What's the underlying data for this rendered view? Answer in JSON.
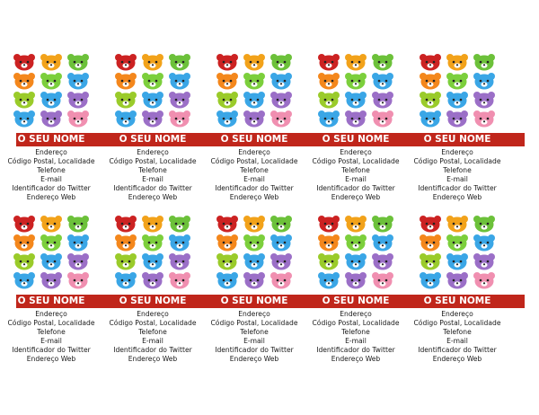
{
  "label": {
    "name": "O SEU NOME",
    "address": "Endereço",
    "postal": "Código Postal, Localidade",
    "phone": "Telefone",
    "email": "E-mail",
    "twitter": "Identificador do Twitter",
    "web": "Endereço Web"
  },
  "colors": {
    "band": "#c0261b",
    "bear_row1": [
      "#cc2222",
      "#f2a21a",
      "#6cc13a"
    ],
    "bear_row2": [
      "#f4871c",
      "#7ccf3c",
      "#3aa6e6"
    ],
    "bear_row3": [
      "#9acb2a",
      "#3aa6e6",
      "#9b6fc7"
    ],
    "bear_row4": [
      "#3aa6e6",
      "#9b6fc7",
      "#f08fb0"
    ]
  },
  "icons": {
    "bear": "bear-face-icon"
  }
}
